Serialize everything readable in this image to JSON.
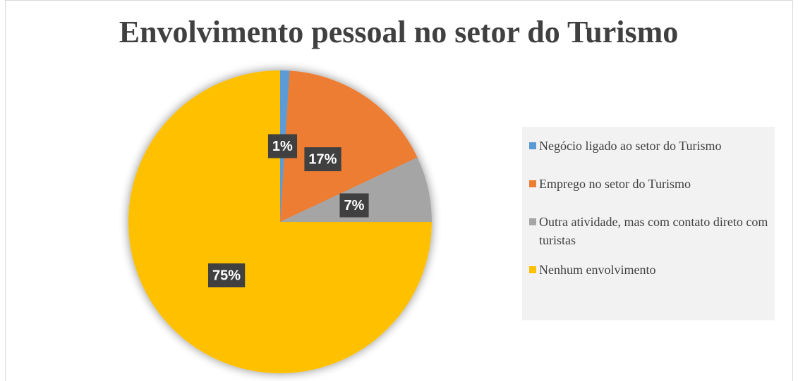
{
  "chart_data": {
    "type": "pie",
    "title": "Envolvimento pessoal no setor do Turismo",
    "categories": [
      "Negócio ligado ao setor do Turismo",
      "Emprego no setor do Turismo",
      "Outra atividade, mas com contato direto com turistas",
      "Nenhum envolvimento"
    ],
    "values": [
      1,
      17,
      7,
      75
    ],
    "value_labels": [
      "1%",
      "17%",
      "7%",
      "75%"
    ],
    "colors": [
      "#5b9bd5",
      "#ed7d31",
      "#a5a5a5",
      "#ffc000"
    ],
    "legend": "right"
  }
}
